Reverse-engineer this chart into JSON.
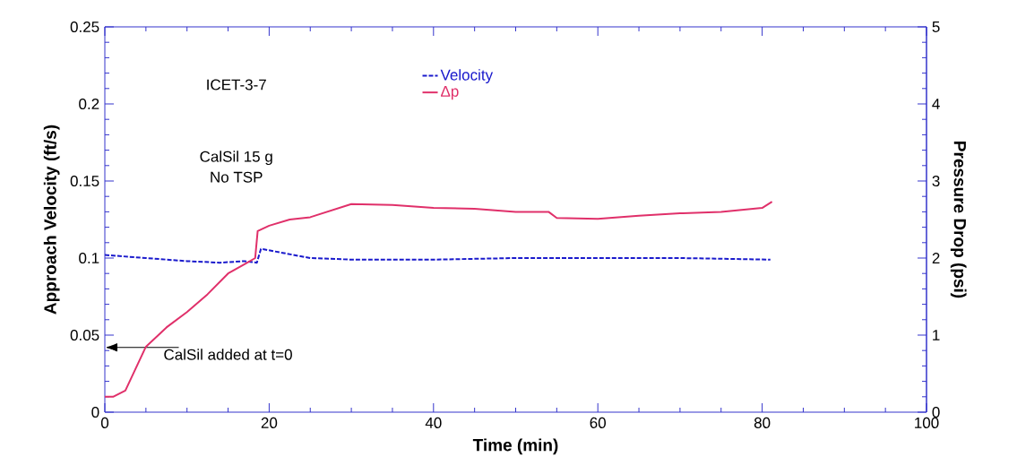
{
  "chart_data": {
    "type": "line",
    "xlabel": "Time (min)",
    "ylabel": "Approach Velocity (ft/s)",
    "y2label": "Pressure Drop (psi)",
    "xlim": [
      0,
      100
    ],
    "xticks": [
      0,
      20,
      40,
      60,
      80,
      100
    ],
    "ylim": [
      0,
      0.25
    ],
    "yticks": [
      0,
      0.05,
      0.1,
      0.15,
      0.2,
      0.25
    ],
    "y2lim": [
      0,
      5
    ],
    "y2ticks": [
      0,
      1,
      2,
      3,
      4,
      5
    ],
    "legend": "top",
    "marker": "none",
    "series": [
      {
        "name": "Velocity",
        "color": "#1a1acc",
        "line_style": "dashed",
        "x": [
          0,
          5,
          10,
          14,
          17,
          18.5,
          19,
          25,
          30,
          40,
          50,
          60,
          70,
          81
        ],
        "values": [
          0.102,
          0.1,
          0.098,
          0.097,
          0.098,
          0.097,
          0.106,
          0.1,
          0.099,
          0.099,
          0.1,
          0.1,
          0.1,
          0.099
        ]
      },
      {
        "name": "Δp",
        "color": "#e0306a",
        "line_style": "solid",
        "axis": "y2",
        "x": [
          0,
          1,
          2.5,
          5,
          7.5,
          10,
          12.5,
          15,
          17,
          18.3,
          18.6,
          20,
          22.5,
          25,
          30,
          35,
          40,
          45,
          50,
          54,
          55,
          60,
          65,
          70,
          75,
          80,
          81.2
        ],
        "values": [
          0.2,
          0.2,
          0.28,
          0.85,
          1.1,
          1.3,
          1.53,
          1.8,
          1.92,
          2.0,
          2.35,
          2.42,
          2.5,
          2.53,
          2.7,
          2.69,
          2.65,
          2.64,
          2.6,
          2.6,
          2.52,
          2.51,
          2.55,
          2.58,
          2.6,
          2.65,
          2.73
        ]
      }
    ],
    "annotations": [
      "ICET-3-7",
      "CalSil 15 g",
      "No TSP",
      "CalSil added at t=0"
    ]
  }
}
